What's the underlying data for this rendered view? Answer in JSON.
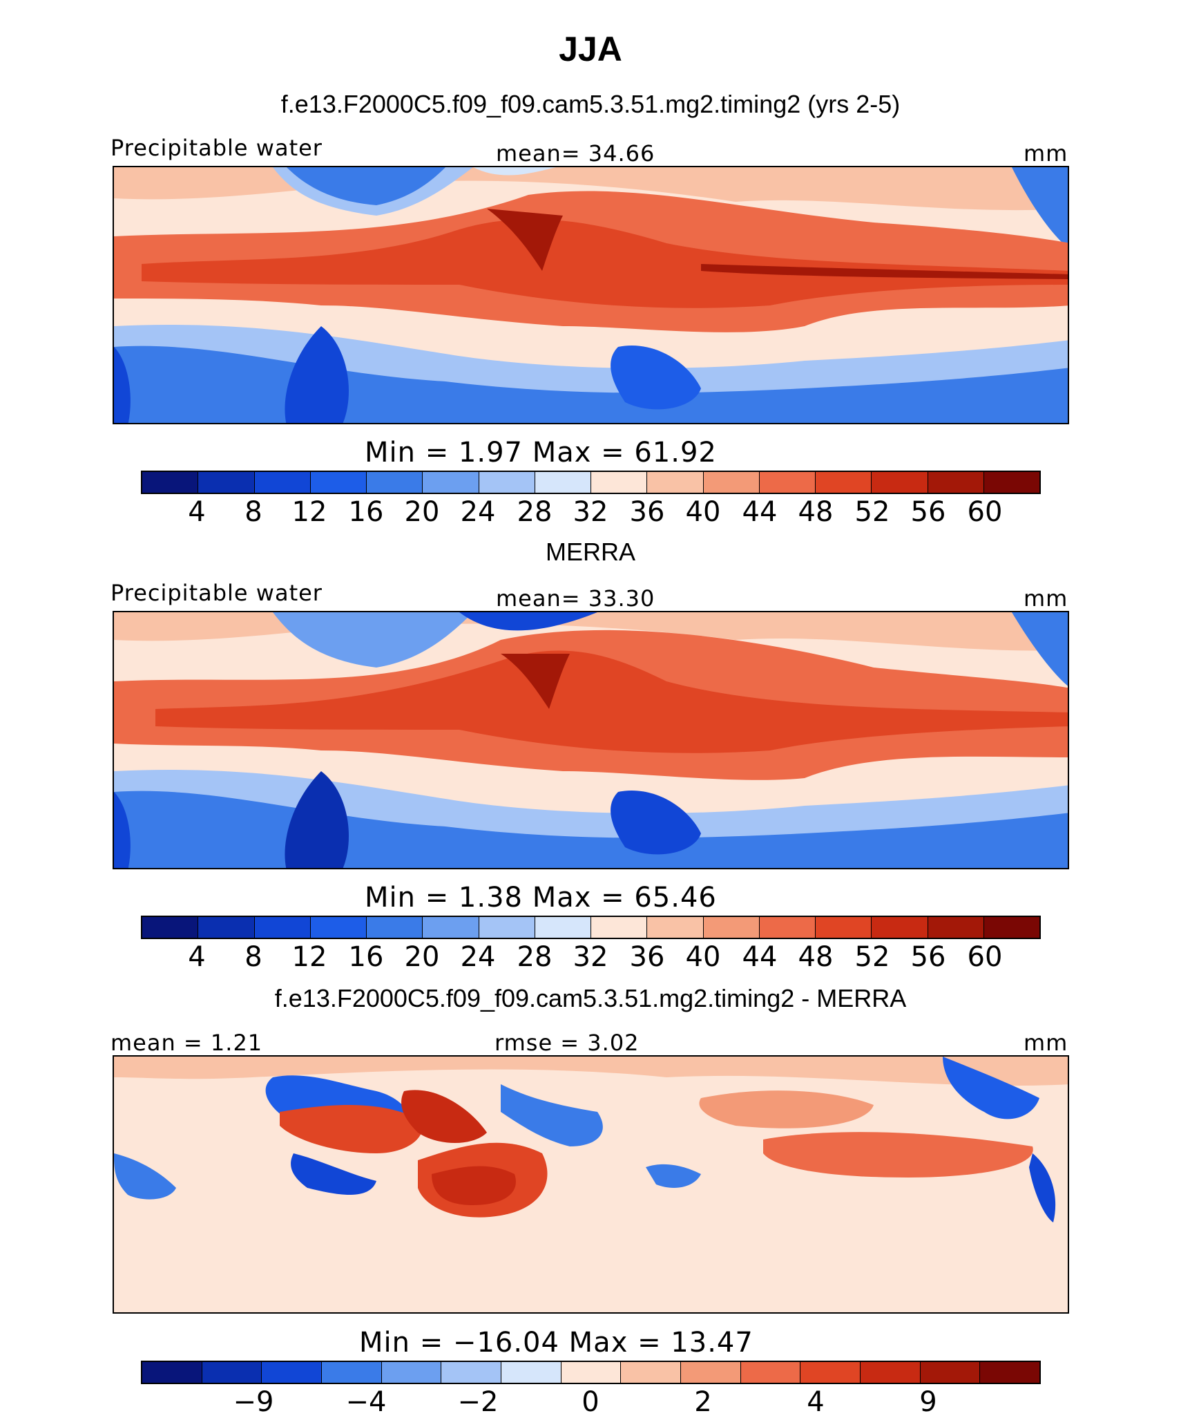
{
  "figure": {
    "season": "JJA",
    "units": "mm",
    "colors": {
      "abs_scale": [
        "#08157a",
        "#0a2fb0",
        "#1146d6",
        "#1d5de8",
        "#3a7be8",
        "#6c9ff0",
        "#a4c4f6",
        "#d6e6fb",
        "#fde6d8",
        "#f9c2a6",
        "#f39a77",
        "#ed6a48",
        "#e04524",
        "#c82a12",
        "#a31808",
        "#7a0704"
      ],
      "diff_scale": [
        "#08157a",
        "#0a2fb0",
        "#1146d6",
        "#3a7be8",
        "#6c9ff0",
        "#a4c4f6",
        "#d6e6fb",
        "#fde6d8",
        "#f9c2a6",
        "#f39a77",
        "#ed6a48",
        "#e04524",
        "#c82a12",
        "#a31808",
        "#7a0704"
      ]
    },
    "panels": [
      {
        "title": "f.e13.F2000C5.f09_f09.cam5.3.51.mg2.timing2 (yrs 2-5)",
        "left_label": "Precipitable water",
        "center_label": "mean=   34.66",
        "right_label": "mm",
        "stats": "Min =     1.97  Max =    61.92",
        "ticks": [
          "4",
          "8",
          "12",
          "16",
          "20",
          "24",
          "28",
          "32",
          "36",
          "40",
          "44",
          "48",
          "52",
          "56",
          "60"
        ]
      },
      {
        "title": "MERRA",
        "left_label": "Precipitable water",
        "center_label": "mean=   33.30",
        "right_label": "mm",
        "stats": "Min =     1.38  Max =    65.46",
        "ticks": [
          "4",
          "8",
          "12",
          "16",
          "20",
          "24",
          "28",
          "32",
          "36",
          "40",
          "44",
          "48",
          "52",
          "56",
          "60"
        ]
      },
      {
        "title": "f.e13.F2000C5.f09_f09.cam5.3.51.mg2.timing2 - MERRA",
        "left_label": "mean =    1.21",
        "center_label": "rmse =    3.02",
        "right_label": "mm",
        "stats": "Min = −16.04  Max =    13.47",
        "ticks": [
          "−9",
          "−4",
          "−2",
          "0",
          "2",
          "4",
          "9"
        ]
      }
    ]
  }
}
